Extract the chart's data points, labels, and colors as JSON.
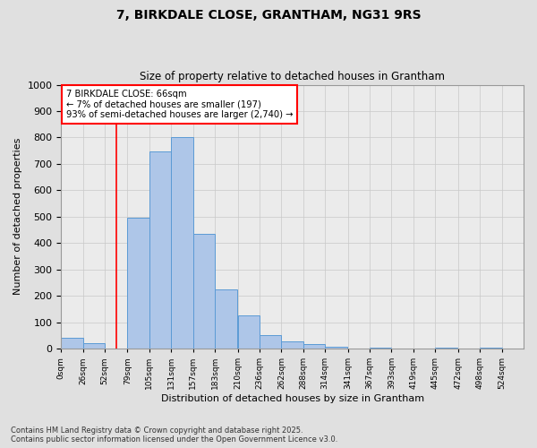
{
  "title_line1": "7, BIRKDALE CLOSE, GRANTHAM, NG31 9RS",
  "title_line2": "Size of property relative to detached houses in Grantham",
  "xlabel": "Distribution of detached houses by size in Grantham",
  "ylabel": "Number of detached properties",
  "footer_line1": "Contains HM Land Registry data © Crown copyright and database right 2025.",
  "footer_line2": "Contains public sector information licensed under the Open Government Licence v3.0.",
  "bin_labels": [
    "0sqm",
    "26sqm",
    "52sqm",
    "79sqm",
    "105sqm",
    "131sqm",
    "157sqm",
    "183sqm",
    "210sqm",
    "236sqm",
    "262sqm",
    "288sqm",
    "314sqm",
    "341sqm",
    "367sqm",
    "393sqm",
    "419sqm",
    "445sqm",
    "472sqm",
    "498sqm",
    "524sqm"
  ],
  "bar_values": [
    42,
    20,
    0,
    495,
    748,
    800,
    435,
    225,
    127,
    50,
    28,
    18,
    7,
    0,
    2,
    0,
    0,
    5,
    0,
    3,
    0
  ],
  "bar_color": "#aec6e8",
  "bar_edge_color": "#5b9bd5",
  "grid_color": "#c8c8c8",
  "background_color": "#e0e0e0",
  "plot_background_color": "#ebebeb",
  "property_line_x": 66,
  "annotation_text_line1": "7 BIRKDALE CLOSE: 66sqm",
  "annotation_text_line2": "← 7% of detached houses are smaller (197)",
  "annotation_text_line3": "93% of semi-detached houses are larger (2,740) →",
  "ylim": [
    0,
    1000
  ],
  "yticks": [
    0,
    100,
    200,
    300,
    400,
    500,
    600,
    700,
    800,
    900,
    1000
  ]
}
